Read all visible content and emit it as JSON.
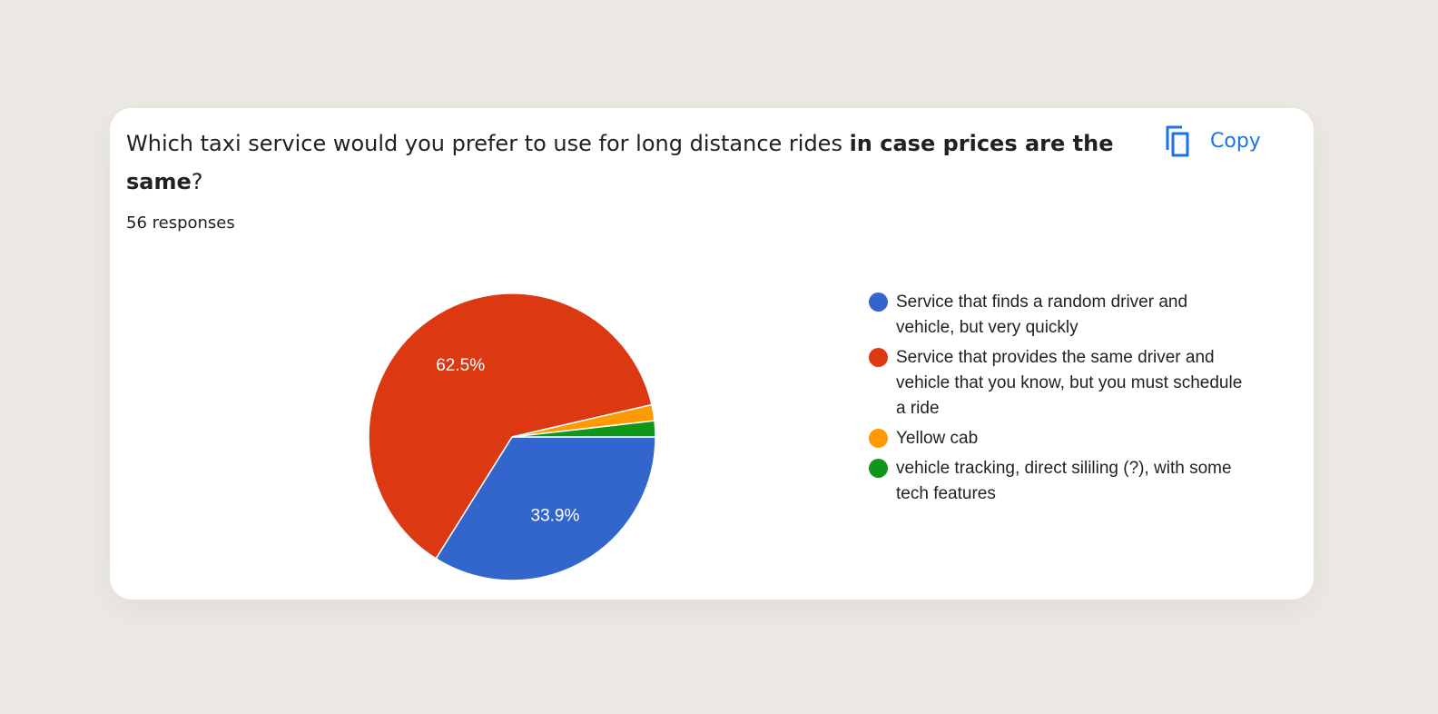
{
  "question": {
    "text_plain": "Which taxi service would you prefer to use for long distance rides ",
    "text_bold_1": "in case prices are the same",
    "text_end": "?"
  },
  "responses_label": "56 responses",
  "copy_button": {
    "label": "Copy",
    "icon": "copy-icon",
    "color": "#1a73e8"
  },
  "chart_data": {
    "type": "pie",
    "title": "",
    "slices": [
      {
        "label": "Service that finds a random driver and vehicle, but very quickly",
        "value": 33.9,
        "data_label": "33.9%",
        "color": "#3366cc"
      },
      {
        "label": "Service that provides the same driver and vehicle that you know, but you must schedule a ride",
        "value": 62.5,
        "data_label": "62.5%",
        "color": "#dc3912"
      },
      {
        "label": "Yellow cab",
        "value": 1.8,
        "data_label": "",
        "color": "#ff9900"
      },
      {
        "label": "vehicle tracking, direct sililing (?), with some tech features",
        "value": 1.8,
        "data_label": "",
        "color": "#109618"
      }
    ],
    "legend_position": "right"
  }
}
